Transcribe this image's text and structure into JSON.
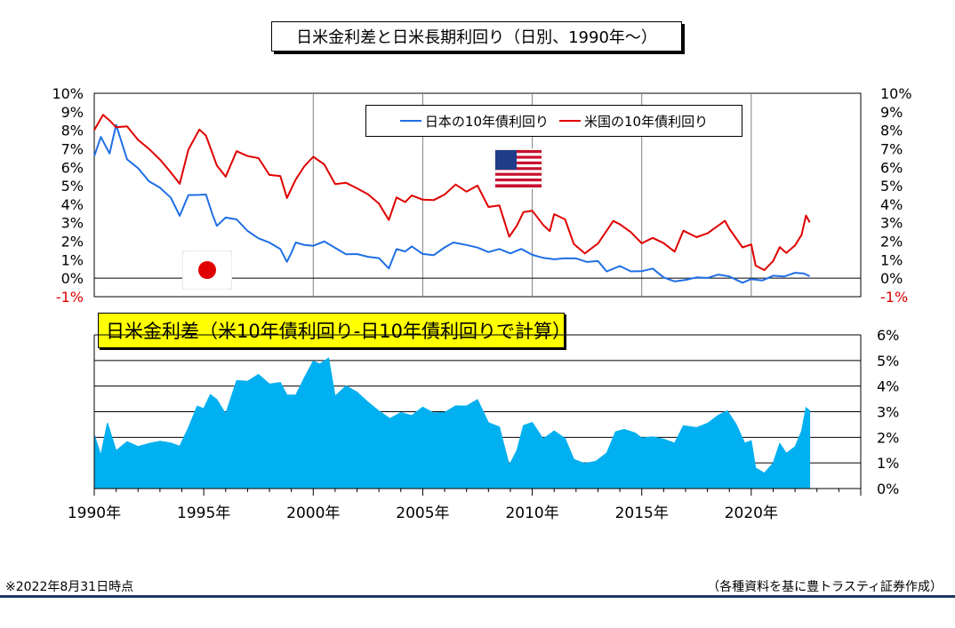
{
  "title": "日米金利差と日米長期利回り（日別、1990年～）",
  "legend": {
    "jp_label": "日本の10年債利回り",
    "us_label": "米国の10年債利回り"
  },
  "spread_title": "日米金利差（米10年債利回り-日10年債利回りで計算）",
  "footnote": "※2022年8月31日時点",
  "source": "（各種資料を基に豊トラスティ証券作成）",
  "colors": {
    "jp": "#1f6fe5",
    "us": "#e00000",
    "spread": "#00b0f0",
    "negative_tick": "#e00000"
  },
  "chart_data": [
    {
      "type": "line",
      "x_unit": "year",
      "xlim": [
        1990,
        2025
      ],
      "ylim": [
        -1,
        10
      ],
      "y_ticks": [
        "10%",
        "9%",
        "8%",
        "7%",
        "6%",
        "5%",
        "4%",
        "3%",
        "2%",
        "1%",
        "0%",
        "-1%"
      ],
      "grid": true,
      "legend_position": "top-right",
      "series": [
        {
          "name": "日本の10年債利回り",
          "color": "#1f6fe5",
          "x": [
            1990.0,
            1990.3,
            1990.7,
            1991.0,
            1991.5,
            1992.0,
            1992.5,
            1993.0,
            1993.5,
            1993.9,
            1994.3,
            1994.8,
            1995.1,
            1995.4,
            1995.6,
            1996.0,
            1996.5,
            1997.0,
            1997.5,
            1998.0,
            1998.5,
            1998.8,
            1999.0,
            1999.2,
            1999.6,
            2000.0,
            2000.5,
            2001.0,
            2001.5,
            2002.0,
            2002.5,
            2003.0,
            2003.45,
            2003.8,
            2004.2,
            2004.5,
            2005.0,
            2005.5,
            2006.0,
            2006.4,
            2007.0,
            2007.5,
            2008.0,
            2008.5,
            2009.0,
            2009.5,
            2010.0,
            2010.5,
            2011.0,
            2011.5,
            2012.0,
            2012.5,
            2013.0,
            2013.4,
            2014.0,
            2014.5,
            2015.0,
            2015.5,
            2016.0,
            2016.5,
            2017.0,
            2017.5,
            2018.0,
            2018.5,
            2019.0,
            2019.6,
            2020.0,
            2020.5,
            2021.0,
            2021.5,
            2022.0,
            2022.4,
            2022.67
          ],
          "y": [
            6.6,
            7.5,
            6.7,
            8.2,
            6.6,
            6.0,
            5.3,
            4.8,
            4.2,
            3.4,
            4.5,
            4.7,
            4.5,
            3.4,
            2.7,
            3.2,
            3.3,
            2.6,
            2.3,
            1.8,
            1.5,
            0.8,
            1.4,
            2.1,
            1.8,
            1.8,
            1.8,
            1.6,
            1.3,
            1.4,
            1.3,
            1.0,
            0.5,
            1.4,
            1.5,
            1.8,
            1.4,
            1.3,
            1.5,
            1.9,
            1.7,
            1.8,
            1.5,
            1.6,
            1.3,
            1.4,
            1.3,
            1.1,
            1.2,
            1.1,
            1.0,
            0.8,
            0.8,
            0.5,
            0.7,
            0.5,
            0.3,
            0.4,
            0.0,
            -0.2,
            0.1,
            0.05,
            0.05,
            0.05,
            0.0,
            -0.2,
            0.0,
            0.05,
            0.05,
            0.05,
            0.15,
            0.25,
            0.23
          ]
        },
        {
          "name": "米国の10年債利回り",
          "color": "#e00000",
          "x": [
            1990.0,
            1990.4,
            1990.7,
            1991.0,
            1991.5,
            1992.0,
            1992.5,
            1993.0,
            1993.5,
            1993.9,
            1994.3,
            1994.8,
            1995.1,
            1995.6,
            1996.0,
            1996.5,
            1997.0,
            1997.5,
            1998.0,
            1998.5,
            1998.8,
            1999.2,
            1999.6,
            2000.0,
            2000.5,
            2001.0,
            2001.5,
            2002.0,
            2002.5,
            2003.0,
            2003.45,
            2003.8,
            2004.2,
            2004.5,
            2005.0,
            2005.5,
            2006.0,
            2006.5,
            2007.0,
            2007.5,
            2008.0,
            2008.5,
            2008.95,
            2009.3,
            2009.6,
            2010.0,
            2010.5,
            2010.8,
            2011.0,
            2011.5,
            2011.9,
            2012.4,
            2012.8,
            2013.0,
            2013.7,
            2014.0,
            2014.5,
            2015.0,
            2015.5,
            2016.0,
            2016.5,
            2016.9,
            2017.5,
            2018.0,
            2018.8,
            2019.0,
            2019.6,
            2020.0,
            2020.2,
            2020.6,
            2021.0,
            2021.3,
            2021.6,
            2022.0,
            2022.3,
            2022.5,
            2022.67
          ],
          "y": [
            8.0,
            8.9,
            8.7,
            8.1,
            8.2,
            7.3,
            7.0,
            6.5,
            5.8,
            5.2,
            6.8,
            8.0,
            7.6,
            6.2,
            5.6,
            6.9,
            6.6,
            6.3,
            5.6,
            5.5,
            4.5,
            5.4,
            6.0,
            6.5,
            6.0,
            5.2,
            5.2,
            5.0,
            4.5,
            3.9,
            3.1,
            4.3,
            4.3,
            4.5,
            4.3,
            4.1,
            4.4,
            5.1,
            4.7,
            5.2,
            3.8,
            3.9,
            2.1,
            2.8,
            3.7,
            3.7,
            3.0,
            2.4,
            3.4,
            3.1,
            1.9,
            1.5,
            1.7,
            1.9,
            2.9,
            2.9,
            2.5,
            2.0,
            2.3,
            1.8,
            1.4,
            2.4,
            2.3,
            2.5,
            3.2,
            2.7,
            1.5,
            1.8,
            0.6,
            0.6,
            1.0,
            1.7,
            1.3,
            1.6,
            2.4,
            3.4,
            3.2
          ]
        }
      ]
    },
    {
      "type": "area",
      "title": "日米金利差（米10年債利回り-日10年債利回りで計算）",
      "x_unit": "year",
      "xlim": [
        1990,
        2025
      ],
      "ylim": [
        0,
        6
      ],
      "y_ticks": [
        "6%",
        "5%",
        "4%",
        "3%",
        "2%",
        "1%",
        "0%"
      ],
      "x_tick_labels": [
        "1990年",
        "1995年",
        "2000年",
        "2005年",
        "2010年",
        "2015年",
        "2020年"
      ],
      "grid": true,
      "series": [
        {
          "name": "日米金利差",
          "color": "#00b0f0",
          "x": [
            1990.0,
            1990.3,
            1990.6,
            1991.0,
            1991.5,
            1992.0,
            1992.5,
            1993.0,
            1993.5,
            1993.9,
            1994.3,
            1994.7,
            1995.0,
            1995.3,
            1995.6,
            1996.0,
            1996.5,
            1997.0,
            1997.5,
            1998.0,
            1998.5,
            1998.8,
            1999.2,
            1999.6,
            2000.0,
            2000.3,
            2000.7,
            2001.0,
            2001.5,
            2002.0,
            2002.5,
            2003.0,
            2003.5,
            2004.0,
            2004.5,
            2005.0,
            2005.5,
            2006.0,
            2006.5,
            2007.0,
            2007.5,
            2008.0,
            2008.5,
            2008.95,
            2009.3,
            2009.6,
            2010.0,
            2010.5,
            2011.0,
            2011.5,
            2011.9,
            2012.4,
            2012.9,
            2013.4,
            2013.8,
            2014.2,
            2014.7,
            2015.0,
            2015.5,
            2016.0,
            2016.5,
            2016.9,
            2017.5,
            2018.0,
            2018.5,
            2018.9,
            2019.3,
            2019.7,
            2020.0,
            2020.2,
            2020.6,
            2021.0,
            2021.3,
            2021.6,
            2022.0,
            2022.3,
            2022.5,
            2022.67
          ],
          "y": [
            2.1,
            1.2,
            2.4,
            1.3,
            1.7,
            1.6,
            1.7,
            1.7,
            1.6,
            1.5,
            2.3,
            3.2,
            3.0,
            3.5,
            3.3,
            2.8,
            4.2,
            4.1,
            4.3,
            3.9,
            4.0,
            3.6,
            3.6,
            4.2,
            4.8,
            4.7,
            5.0,
            3.6,
            3.9,
            3.6,
            3.2,
            2.9,
            2.7,
            2.9,
            2.7,
            3.0,
            2.8,
            2.9,
            3.2,
            3.1,
            3.3,
            2.4,
            2.3,
            0.9,
            1.4,
            2.3,
            2.4,
            1.8,
            2.2,
            1.9,
            1.0,
            0.8,
            0.9,
            1.3,
            2.2,
            2.2,
            2.0,
            1.8,
            1.9,
            1.9,
            1.7,
            2.3,
            2.2,
            2.4,
            2.8,
            3.0,
            2.4,
            1.6,
            1.7,
            0.7,
            0.6,
            0.9,
            1.6,
            1.2,
            1.5,
            2.2,
            3.1,
            2.9
          ]
        }
      ]
    }
  ]
}
